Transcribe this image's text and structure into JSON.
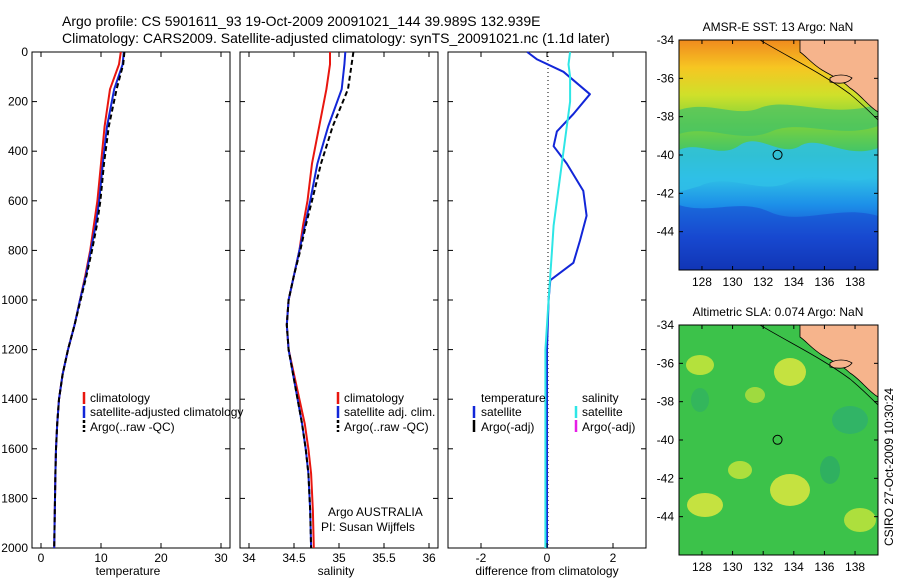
{
  "header": {
    "line1": "Argo profile: CS 5901611_93 19-Oct-2009 20091021_144 39.989S 132.939E",
    "line2": "Climatology: CARS2009. Satellite-adjusted climatology: synTS_20091021.nc (1.1d later)"
  },
  "credit": "CSIRO 27-Oct-2009 10:30:24",
  "colors": {
    "red": "#e8160f",
    "blue": "#1226d8",
    "black": "#000000",
    "cyan": "#2ee6e6",
    "magenta": "#e61ee6",
    "land": "#f6b48c"
  },
  "chart_data": [
    {
      "type": "line",
      "panel": "temperature",
      "xlabel": "temperature",
      "xlim": [
        -1.5,
        31.5
      ],
      "ylim": [
        2000,
        0
      ],
      "xticks": [
        "0",
        "10",
        "20",
        "30"
      ],
      "xtick_values": [
        0,
        10,
        20,
        30
      ],
      "yticks": [
        "0",
        "200",
        "400",
        "600",
        "800",
        "1000",
        "1200",
        "1400",
        "1600",
        "1800",
        "2000"
      ],
      "ytick_values": [
        0,
        200,
        400,
        600,
        800,
        1000,
        1200,
        1400,
        1600,
        1800,
        2000
      ],
      "legend": [
        "climatology",
        "satellite-adjusted climatology",
        "Argo(..raw -QC)"
      ],
      "series": [
        {
          "name": "climatology",
          "color": "red",
          "dash": "",
          "x": [
            13.3,
            13.0,
            11.5,
            10.6,
            10.0,
            9.4,
            8.8,
            8.2,
            7.4,
            6.5,
            5.6,
            4.5,
            3.6,
            3.0,
            2.7,
            2.5,
            2.4,
            2.3,
            2.2
          ],
          "y": [
            0,
            50,
            150,
            300,
            450,
            600,
            700,
            800,
            900,
            1000,
            1100,
            1200,
            1300,
            1400,
            1500,
            1600,
            1700,
            1850,
            2000
          ]
        },
        {
          "name": "satellite-adjusted climatology",
          "color": "blue",
          "dash": "",
          "x": [
            13.8,
            13.6,
            12.2,
            11.0,
            10.3,
            9.7,
            9.1,
            8.3,
            7.5,
            6.5,
            5.6,
            4.5,
            3.6,
            3.0,
            2.7,
            2.5,
            2.4,
            2.3,
            2.2
          ],
          "y": [
            0,
            50,
            150,
            300,
            450,
            600,
            700,
            800,
            900,
            1000,
            1100,
            1200,
            1300,
            1400,
            1500,
            1600,
            1700,
            1850,
            2000
          ]
        },
        {
          "name": "Argo(..raw -QC)",
          "color": "black",
          "dash": "5,3",
          "x": [
            13.9,
            13.7,
            12.6,
            11.3,
            10.5,
            9.9,
            9.3,
            8.5,
            7.6,
            6.6,
            5.6,
            4.5,
            3.6,
            3.0,
            2.7,
            2.5,
            2.4,
            2.3,
            2.2
          ],
          "y": [
            0,
            50,
            150,
            300,
            450,
            600,
            700,
            800,
            900,
            1000,
            1100,
            1200,
            1300,
            1400,
            1500,
            1600,
            1700,
            1850,
            2000
          ]
        }
      ]
    },
    {
      "type": "line",
      "panel": "salinity",
      "xlabel": "salinity",
      "xlim": [
        33.9,
        36.1
      ],
      "ylim": [
        2000,
        0
      ],
      "xticks": [
        "34",
        "34.5",
        "35",
        "35.5",
        "36"
      ],
      "xtick_values": [
        34,
        34.5,
        35,
        35.5,
        36
      ],
      "legend": [
        "climatology",
        "satellite adj. clim.",
        "Argo(..raw -QC)"
      ],
      "annotations": [
        "Argo AUSTRALIA",
        "PI: Susan Wijffels"
      ],
      "series": [
        {
          "name": "climatology",
          "color": "red",
          "dash": "",
          "x": [
            34.9,
            34.9,
            34.86,
            34.78,
            34.7,
            34.65,
            34.6,
            34.56,
            34.5,
            34.44,
            34.42,
            34.44,
            34.5,
            34.56,
            34.62,
            34.66,
            34.69,
            34.71,
            34.72
          ],
          "y": [
            0,
            50,
            150,
            300,
            450,
            600,
            700,
            800,
            900,
            1000,
            1100,
            1200,
            1300,
            1400,
            1500,
            1600,
            1700,
            1850,
            2000
          ]
        },
        {
          "name": "satellite adj. clim.",
          "color": "blue",
          "dash": "",
          "x": [
            35.07,
            35.06,
            35.03,
            34.88,
            34.76,
            34.68,
            34.62,
            34.56,
            34.5,
            34.44,
            34.42,
            34.44,
            34.49,
            34.54,
            34.59,
            34.63,
            34.66,
            34.68,
            34.69
          ],
          "y": [
            0,
            50,
            150,
            300,
            450,
            600,
            700,
            800,
            900,
            1000,
            1100,
            1200,
            1300,
            1400,
            1500,
            1600,
            1700,
            1850,
            2000
          ]
        },
        {
          "name": "Argo(..raw -QC)",
          "color": "black",
          "dash": "5,3",
          "x": [
            35.16,
            35.14,
            35.1,
            34.93,
            34.8,
            34.7,
            34.63,
            34.57,
            34.5,
            34.44,
            34.42,
            34.44,
            34.49,
            34.54,
            34.59,
            34.63,
            34.66,
            34.68,
            34.69
          ],
          "y": [
            0,
            50,
            150,
            300,
            450,
            600,
            700,
            800,
            900,
            1000,
            1100,
            1200,
            1300,
            1400,
            1500,
            1600,
            1700,
            1850,
            2000
          ]
        }
      ]
    },
    {
      "type": "line",
      "panel": "difference",
      "xlabel": "difference from climatology",
      "xlim": [
        -3,
        3
      ],
      "ylim": [
        2000,
        0
      ],
      "xticks": [
        "-2",
        "0",
        "2"
      ],
      "xtick_values": [
        -2,
        0,
        2
      ],
      "legend_titles": [
        "temperature",
        "salinity"
      ],
      "legend": [
        "satellite",
        "Argo(-adj)",
        "satellite",
        "Argo(-adj)"
      ],
      "series": [
        {
          "name": "satellite",
          "group": "temperature",
          "color": "blue",
          "dash": "",
          "x": [
            -0.6,
            -0.3,
            0.5,
            1.3,
            0.8,
            0.3,
            0.2,
            0.6,
            1.1,
            1.2,
            1.0,
            0.8,
            0.1,
            0.05,
            0.0,
            0.0,
            0.0,
            0.0,
            0.0
          ],
          "y": [
            0,
            30,
            80,
            170,
            250,
            320,
            380,
            450,
            560,
            660,
            760,
            850,
            920,
            1000,
            1200,
            1400,
            1600,
            1800,
            2000
          ]
        },
        {
          "name": "satellite",
          "group": "salinity",
          "color": "cyan",
          "dash": "",
          "x": [
            0.7,
            0.65,
            0.7,
            0.7,
            0.6,
            0.5,
            0.4,
            0.3,
            0.2,
            0.15,
            0.1,
            0.05,
            0.0,
            -0.05,
            -0.05,
            -0.05,
            -0.05,
            -0.05,
            -0.05
          ],
          "y": [
            0,
            50,
            100,
            200,
            300,
            400,
            500,
            600,
            700,
            800,
            900,
            1000,
            1100,
            1200,
            1400,
            1600,
            1700,
            1850,
            2000
          ]
        }
      ]
    }
  ],
  "maps": [
    {
      "title": "AMSR-E SST: 13 Argo: NaN",
      "lon_ticks": [
        "128",
        "130",
        "132",
        "134",
        "136",
        "138"
      ],
      "lat_ticks": [
        "-34",
        "-36",
        "-38",
        "-40",
        "-42",
        "-44"
      ],
      "marker_lon": 132.939,
      "marker_lat": -39.989
    },
    {
      "title": "Altimetric SLA: 0.074 Argo: NaN",
      "lon_ticks": [
        "128",
        "130",
        "132",
        "134",
        "136",
        "138"
      ],
      "lat_ticks": [
        "-34",
        "-36",
        "-38",
        "-40",
        "-42",
        "-44"
      ],
      "marker_lon": 132.939,
      "marker_lat": -39.989
    }
  ]
}
